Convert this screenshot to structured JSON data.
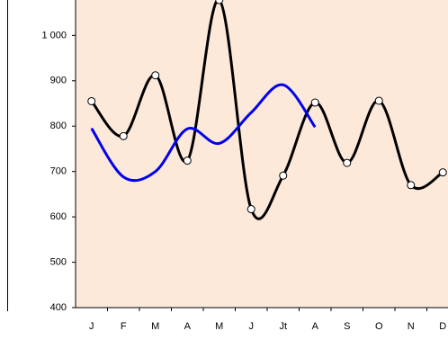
{
  "chart_data": {
    "type": "line",
    "categories": [
      "J",
      "F",
      "M",
      "A",
      "M",
      "J",
      "Jt",
      "A",
      "S",
      "O",
      "N",
      "D"
    ],
    "series": [
      {
        "color": "#000000",
        "markers": true,
        "values": [
          855,
          778,
          912,
          724,
          1078,
          617,
          691,
          852,
          719,
          856,
          670,
          698
        ]
      },
      {
        "color": "#0000ee",
        "markers": false,
        "values": [
          795,
          688,
          700,
          794,
          762,
          830,
          891,
          798,
          null,
          null,
          null,
          null
        ]
      }
    ],
    "ylim": [
      400,
      1080
    ],
    "yticks": [
      400,
      500,
      600,
      700,
      800,
      900,
      {
        "value": 1000,
        "label": "1 000"
      }
    ],
    "grid": false,
    "smooth": true,
    "plot_background": "#fde9d9"
  }
}
